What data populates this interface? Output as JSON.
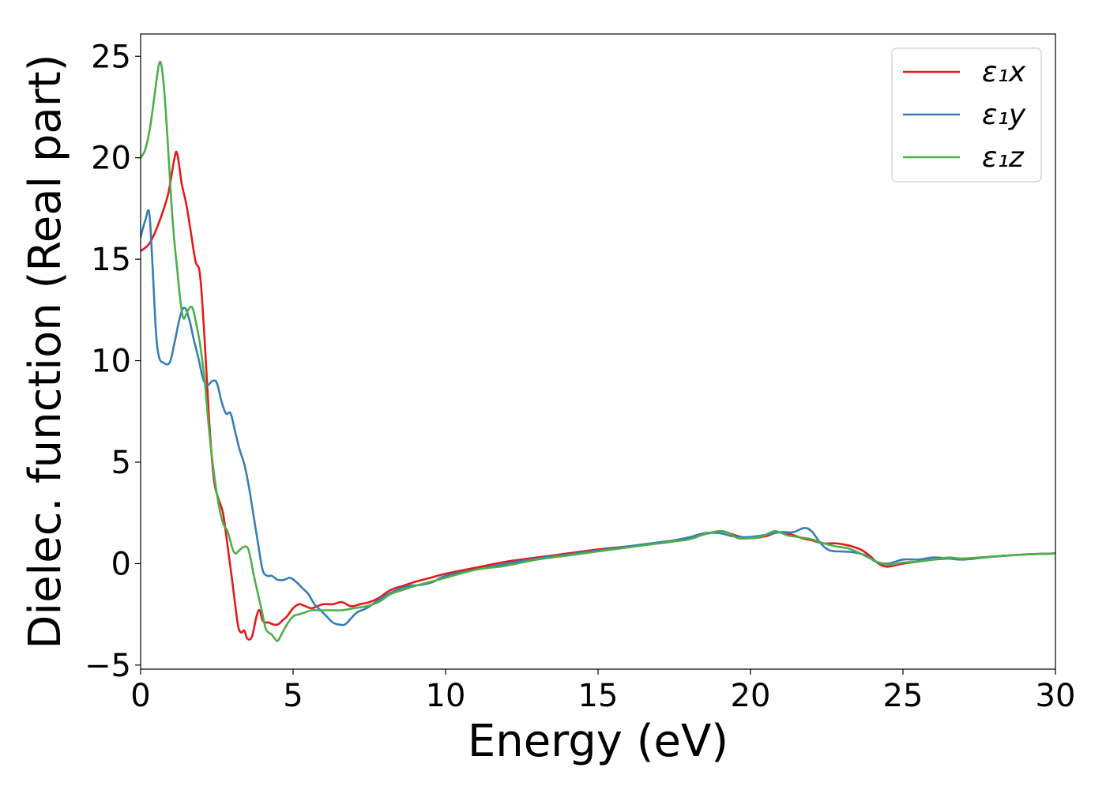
{
  "chart_data": {
    "type": "line",
    "title": "",
    "xlabel": "Energy (eV)",
    "ylabel": "Dielec. function (Real part)",
    "xlim": [
      0,
      30
    ],
    "ylim": [
      -5.2,
      26.1
    ],
    "xticks": [
      0,
      5,
      10,
      15,
      20,
      25,
      30
    ],
    "xtick_labels": [
      "0",
      "5",
      "10",
      "15",
      "20",
      "25",
      "30"
    ],
    "yticks": [
      -5,
      0,
      5,
      10,
      15,
      20,
      25
    ],
    "ytick_labels": [
      "−5",
      "0",
      "5",
      "10",
      "15",
      "20",
      "25"
    ],
    "grid": false,
    "legend_position": "top-right",
    "series": [
      {
        "name": "ε₁x",
        "color": "#e41a1c",
        "x": [
          0,
          0.3,
          0.6,
          0.9,
          1.1,
          1.2,
          1.35,
          1.5,
          1.65,
          1.8,
          1.95,
          2.1,
          2.25,
          2.4,
          2.55,
          2.7,
          2.85,
          3.0,
          3.1,
          3.2,
          3.3,
          3.4,
          3.5,
          3.65,
          3.8,
          3.9,
          4.0,
          4.1,
          4.2,
          4.35,
          4.5,
          4.65,
          4.8,
          5.0,
          5.2,
          5.4,
          5.6,
          5.8,
          6.0,
          6.3,
          6.6,
          6.9,
          7.2,
          7.5,
          7.8,
          8.2,
          8.6,
          9.0,
          9.5,
          10.0,
          11.0,
          12.0,
          13.0,
          14.0,
          15.0,
          16.0,
          17.0,
          17.5,
          18.0,
          18.5,
          19.0,
          19.3,
          19.6,
          20.0,
          20.5,
          20.9,
          21.3,
          21.7,
          22.0,
          22.4,
          22.8,
          23.2,
          23.6,
          23.9,
          24.2,
          24.5,
          25.0,
          25.5,
          26.0,
          26.5,
          27.0,
          28.0,
          29.0,
          30.0
        ],
        "values": [
          15.4,
          15.8,
          16.8,
          18.2,
          19.9,
          20.2,
          18.7,
          17.7,
          16.3,
          14.9,
          14.2,
          11.0,
          7.0,
          4.2,
          3.2,
          2.5,
          0.9,
          -0.8,
          -2.0,
          -3.1,
          -3.4,
          -3.3,
          -3.7,
          -3.6,
          -2.6,
          -2.3,
          -2.8,
          -2.9,
          -2.9,
          -3.0,
          -3.0,
          -2.8,
          -2.6,
          -2.2,
          -2.0,
          -2.1,
          -2.2,
          -2.1,
          -2.0,
          -2.0,
          -1.9,
          -2.1,
          -2.0,
          -1.9,
          -1.7,
          -1.3,
          -1.1,
          -0.9,
          -0.7,
          -0.5,
          -0.2,
          0.1,
          0.3,
          0.5,
          0.7,
          0.85,
          1.0,
          1.1,
          1.25,
          1.45,
          1.6,
          1.5,
          1.35,
          1.25,
          1.35,
          1.55,
          1.45,
          1.25,
          1.15,
          1.0,
          1.0,
          0.9,
          0.7,
          0.4,
          0.0,
          -0.15,
          0.0,
          0.1,
          0.2,
          0.25,
          0.25,
          0.35,
          0.45,
          0.5
        ]
      },
      {
        "name": "ε₁y",
        "color": "#377eb8",
        "x": [
          0,
          0.15,
          0.28,
          0.38,
          0.5,
          0.6,
          0.75,
          0.95,
          1.1,
          1.3,
          1.45,
          1.6,
          1.75,
          1.9,
          2.05,
          2.2,
          2.35,
          2.5,
          2.65,
          2.8,
          2.95,
          3.1,
          3.25,
          3.4,
          3.55,
          3.7,
          3.85,
          4.0,
          4.15,
          4.3,
          4.5,
          4.7,
          4.9,
          5.1,
          5.3,
          5.5,
          5.7,
          5.9,
          6.1,
          6.3,
          6.5,
          6.7,
          6.9,
          7.1,
          7.4,
          7.7,
          8.0,
          8.4,
          8.8,
          9.2,
          9.6,
          10.0,
          11.0,
          12.0,
          13.0,
          14.0,
          15.0,
          16.0,
          17.0,
          17.5,
          18.0,
          18.5,
          19.0,
          19.4,
          19.8,
          20.2,
          20.6,
          21.0,
          21.4,
          21.75,
          22.0,
          22.3,
          22.6,
          23.0,
          23.4,
          23.8,
          24.1,
          24.5,
          25.0,
          25.5,
          26.0,
          26.5,
          27.0,
          28.0,
          29.0,
          30.0
        ],
        "values": [
          16.1,
          16.9,
          17.3,
          15.0,
          11.5,
          10.2,
          9.9,
          9.9,
          10.8,
          12.2,
          12.6,
          12.0,
          11.0,
          10.1,
          9.1,
          8.8,
          9.0,
          8.9,
          8.0,
          7.4,
          7.4,
          6.5,
          5.6,
          4.9,
          3.8,
          2.4,
          1.0,
          -0.3,
          -0.6,
          -0.6,
          -0.8,
          -0.8,
          -0.7,
          -0.9,
          -1.2,
          -1.5,
          -2.0,
          -2.3,
          -2.6,
          -2.9,
          -3.0,
          -3.0,
          -2.7,
          -2.4,
          -2.2,
          -1.9,
          -1.6,
          -1.3,
          -1.1,
          -1.05,
          -0.9,
          -0.6,
          -0.3,
          0.0,
          0.25,
          0.45,
          0.65,
          0.85,
          1.05,
          1.15,
          1.3,
          1.5,
          1.5,
          1.35,
          1.3,
          1.35,
          1.45,
          1.55,
          1.55,
          1.75,
          1.6,
          1.0,
          0.65,
          0.6,
          0.55,
          0.4,
          0.1,
          0.0,
          0.2,
          0.2,
          0.3,
          0.25,
          0.2,
          0.35,
          0.45,
          0.5
        ]
      },
      {
        "name": "ε₁z",
        "color": "#4daf4a",
        "x": [
          0,
          0.15,
          0.3,
          0.45,
          0.6,
          0.7,
          0.8,
          0.9,
          1.0,
          1.1,
          1.2,
          1.3,
          1.4,
          1.5,
          1.6,
          1.7,
          1.8,
          1.95,
          2.1,
          2.25,
          2.4,
          2.55,
          2.7,
          2.85,
          3.0,
          3.1,
          3.2,
          3.35,
          3.5,
          3.6,
          3.7,
          3.85,
          4.0,
          4.1,
          4.2,
          4.3,
          4.4,
          4.5,
          4.65,
          4.8,
          5.0,
          5.2,
          5.4,
          5.6,
          5.8,
          6.0,
          6.3,
          6.6,
          7.0,
          7.4,
          7.8,
          8.2,
          8.6,
          9.0,
          9.5,
          10.0,
          11.0,
          12.0,
          13.0,
          14.0,
          15.0,
          16.0,
          17.0,
          17.5,
          18.0,
          18.5,
          19.0,
          19.3,
          19.6,
          20.0,
          20.4,
          20.8,
          21.2,
          21.6,
          22.0,
          22.4,
          22.8,
          23.2,
          23.6,
          24.0,
          24.3,
          24.6,
          25.0,
          25.5,
          26.0,
          26.5,
          27.0,
          28.0,
          29.0,
          30.0
        ],
        "values": [
          20.0,
          20.4,
          21.4,
          23.0,
          24.6,
          24.4,
          22.8,
          20.5,
          18.0,
          16.0,
          14.5,
          13.0,
          12.1,
          12.3,
          12.6,
          12.6,
          12.0,
          10.8,
          9.0,
          6.5,
          4.5,
          3.0,
          2.0,
          1.6,
          0.8,
          0.5,
          0.6,
          0.8,
          0.8,
          0.3,
          -0.5,
          -1.5,
          -2.5,
          -3.2,
          -3.4,
          -3.5,
          -3.7,
          -3.8,
          -3.4,
          -3.0,
          -2.6,
          -2.5,
          -2.4,
          -2.3,
          -2.3,
          -2.3,
          -2.3,
          -2.3,
          -2.2,
          -2.1,
          -1.9,
          -1.5,
          -1.3,
          -1.1,
          -0.9,
          -0.7,
          -0.3,
          -0.1,
          0.2,
          0.4,
          0.6,
          0.8,
          1.0,
          1.1,
          1.2,
          1.45,
          1.6,
          1.5,
          1.25,
          1.25,
          1.35,
          1.6,
          1.4,
          1.3,
          1.2,
          1.0,
          0.85,
          0.75,
          0.5,
          0.2,
          0.0,
          -0.05,
          0.05,
          0.1,
          0.2,
          0.3,
          0.25,
          0.35,
          0.45,
          0.5
        ]
      }
    ]
  }
}
